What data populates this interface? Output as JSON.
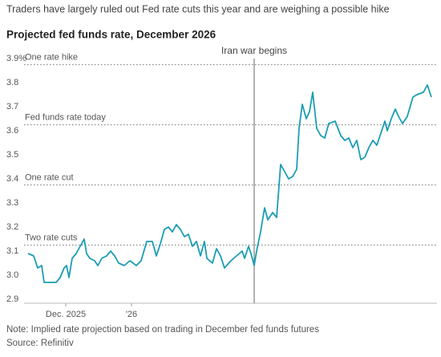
{
  "chart_data": {
    "type": "line",
    "subtitle": "Traders have largely ruled out Fed rate cuts this year and are weighing a possible hike",
    "title": "Projected fed funds rate, December 2026",
    "note": "Note: Implied rate projection based on trading in December fed funds futures",
    "source": "Source: Refinitiv",
    "x": [
      0,
      7,
      12,
      17,
      20,
      25,
      30,
      35,
      40,
      45,
      48,
      51,
      55,
      60,
      65,
      70,
      73,
      77,
      83,
      87,
      92,
      98,
      103,
      108,
      113,
      120,
      127,
      135,
      141,
      148,
      155,
      160,
      165,
      170,
      175,
      180,
      185,
      190,
      195,
      200,
      205,
      210,
      215,
      220,
      223,
      230,
      235,
      240,
      245,
      253,
      260,
      267,
      270,
      275,
      278,
      282,
      285,
      290,
      295,
      299,
      305,
      310,
      315,
      320,
      325,
      330,
      335,
      338,
      342,
      347,
      351,
      355,
      360,
      365,
      370,
      375,
      383,
      390,
      395,
      400,
      405,
      410,
      415,
      420,
      425,
      430,
      435,
      440,
      445,
      448,
      453,
      458,
      462,
      467,
      473,
      480,
      485,
      493,
      498,
      503
    ],
    "series": [
      {
        "name": "Projected fed funds rate",
        "color": "#1b9db3",
        "values": [
          3.09,
          3.08,
          3.03,
          3.04,
          2.97,
          2.97,
          2.97,
          2.97,
          2.99,
          3.03,
          3.04,
          2.99,
          3.07,
          3.09,
          3.12,
          3.15,
          3.09,
          3.07,
          3.06,
          3.04,
          3.07,
          3.08,
          3.1,
          3.08,
          3.05,
          3.04,
          3.06,
          3.04,
          3.06,
          3.14,
          3.14,
          3.08,
          3.13,
          3.19,
          3.2,
          3.18,
          3.21,
          3.19,
          3.16,
          3.17,
          3.12,
          3.14,
          3.08,
          3.14,
          3.07,
          3.05,
          3.11,
          3.08,
          3.03,
          3.06,
          3.08,
          3.1,
          3.07,
          3.12,
          3.09,
          3.04,
          3.1,
          3.18,
          3.28,
          3.23,
          3.26,
          3.24,
          3.46,
          3.43,
          3.4,
          3.41,
          3.44,
          3.61,
          3.71,
          3.65,
          3.68,
          3.76,
          3.61,
          3.58,
          3.57,
          3.63,
          3.64,
          3.58,
          3.56,
          3.57,
          3.53,
          3.56,
          3.48,
          3.49,
          3.53,
          3.56,
          3.54,
          3.59,
          3.64,
          3.6,
          3.65,
          3.69,
          3.66,
          3.63,
          3.66,
          3.74,
          3.75,
          3.76,
          3.79,
          3.74
        ]
      }
    ],
    "xlim": [
      -5,
      510
    ],
    "xticks": [
      {
        "value": 47,
        "label": "Dec. 2025"
      },
      {
        "value": 129,
        "label": "'26"
      }
    ],
    "ylim": [
      2.9,
      3.9
    ],
    "yticks": [
      2.9,
      {
        "value": 3,
        "label": "3.0"
      },
      3.1,
      3.2,
      3.3,
      3.4,
      3.5,
      3.6,
      3.7,
      3.8,
      {
        "value": 3.9,
        "label": "3.9%"
      }
    ],
    "reference_lines": [
      {
        "value": 3.875,
        "label": "One rate hike"
      },
      {
        "value": 3.625,
        "label": "Fed funds rate today"
      },
      {
        "value": 3.375,
        "label": "One rate cut"
      },
      {
        "value": 3.125,
        "label": "Two rate cuts"
      }
    ],
    "annotations": [
      {
        "x": 282,
        "text": "Iran war begins"
      }
    ]
  }
}
